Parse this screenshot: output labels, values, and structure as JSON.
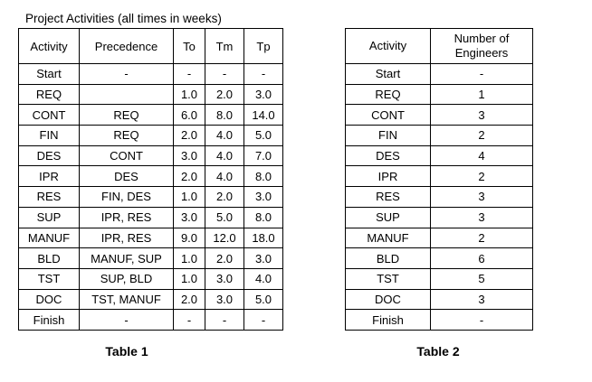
{
  "title": "Project Activities (all times in weeks)",
  "table1": {
    "caption": "Table 1",
    "headers": [
      "Activity",
      "Precedence",
      "To",
      "Tm",
      "Tp"
    ],
    "rows": [
      [
        "Start",
        "-",
        "-",
        "-",
        "-"
      ],
      [
        "REQ",
        "",
        "1.0",
        "2.0",
        "3.0"
      ],
      [
        "CONT",
        "REQ",
        "6.0",
        "8.0",
        "14.0"
      ],
      [
        "FIN",
        "REQ",
        "2.0",
        "4.0",
        "5.0"
      ],
      [
        "DES",
        "CONT",
        "3.0",
        "4.0",
        "7.0"
      ],
      [
        "IPR",
        "DES",
        "2.0",
        "4.0",
        "8.0"
      ],
      [
        "RES",
        "FIN, DES",
        "1.0",
        "2.0",
        "3.0"
      ],
      [
        "SUP",
        "IPR, RES",
        "3.0",
        "5.0",
        "8.0"
      ],
      [
        "MANUF",
        "IPR, RES",
        "9.0",
        "12.0",
        "18.0"
      ],
      [
        "BLD",
        "MANUF, SUP",
        "1.0",
        "2.0",
        "3.0"
      ],
      [
        "TST",
        "SUP, BLD",
        "1.0",
        "3.0",
        "4.0"
      ],
      [
        "DOC",
        "TST, MANUF",
        "2.0",
        "3.0",
        "5.0"
      ],
      [
        "Finish",
        "-",
        "-",
        "-",
        "-"
      ]
    ]
  },
  "table2": {
    "caption": "Table 2",
    "headers": [
      "Activity",
      "Number of Engineers"
    ],
    "rows": [
      [
        "Start",
        "-"
      ],
      [
        "REQ",
        "1"
      ],
      [
        "CONT",
        "3"
      ],
      [
        "FIN",
        "2"
      ],
      [
        "DES",
        "4"
      ],
      [
        "IPR",
        "2"
      ],
      [
        "RES",
        "3"
      ],
      [
        "SUP",
        "3"
      ],
      [
        "MANUF",
        "2"
      ],
      [
        "BLD",
        "6"
      ],
      [
        "TST",
        "5"
      ],
      [
        "DOC",
        "3"
      ],
      [
        "Finish",
        "-"
      ]
    ]
  }
}
